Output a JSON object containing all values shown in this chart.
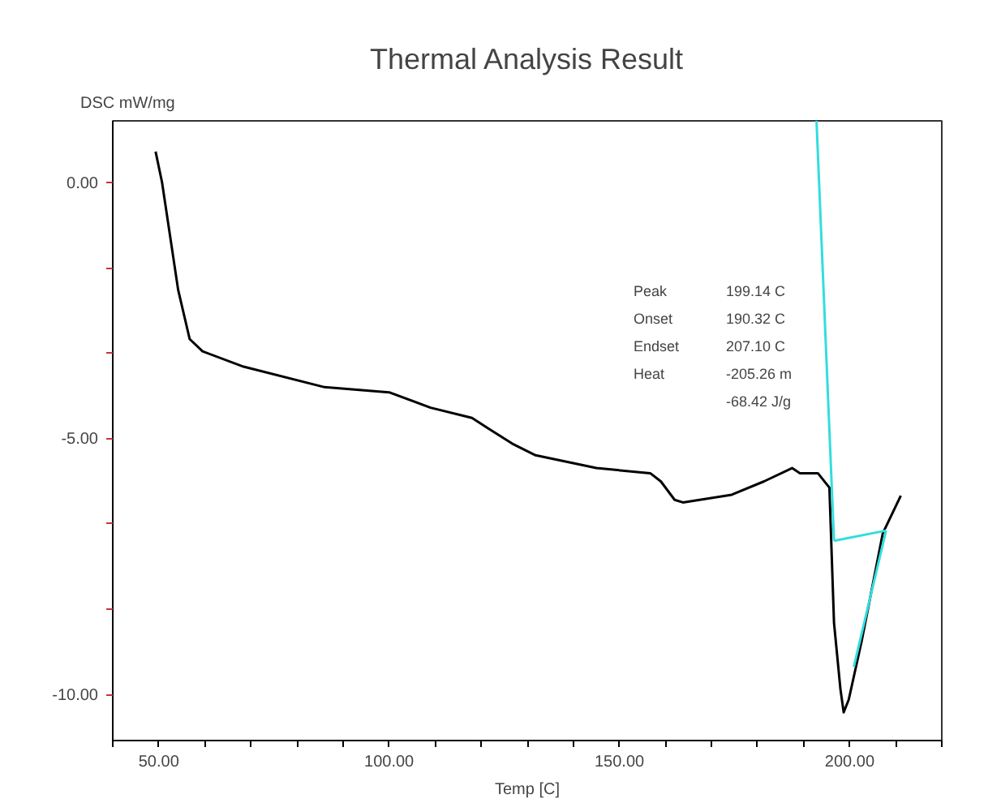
{
  "chart_data": {
    "type": "line",
    "title": "Thermal Analysis Result",
    "xlabel": "Temp [C]",
    "ylabel": "DSC mW/mg",
    "xlim": [
      40,
      220
    ],
    "ylim": [
      -10.9,
      1.2
    ],
    "xticks": [
      {
        "value": 40,
        "label": null
      },
      {
        "value": 50,
        "label": "50.00"
      },
      {
        "value": 60,
        "label": null
      },
      {
        "value": 70,
        "label": null
      },
      {
        "value": 80,
        "label": null
      },
      {
        "value": 90,
        "label": null
      },
      {
        "value": 100,
        "label": "100.00"
      },
      {
        "value": 110,
        "label": null
      },
      {
        "value": 120,
        "label": null
      },
      {
        "value": 130,
        "label": null
      },
      {
        "value": 140,
        "label": null
      },
      {
        "value": 150,
        "label": "150.00"
      },
      {
        "value": 160,
        "label": null
      },
      {
        "value": 170,
        "label": null
      },
      {
        "value": 180,
        "label": null
      },
      {
        "value": 190,
        "label": null
      },
      {
        "value": 200,
        "label": "200.00"
      },
      {
        "value": 210,
        "label": null
      },
      {
        "value": 220,
        "label": null
      }
    ],
    "yticks": [
      {
        "value": 0,
        "label": "0.00"
      },
      {
        "value": -1.67,
        "label": null
      },
      {
        "value": -3.33,
        "label": null
      },
      {
        "value": -5,
        "label": "-5.00"
      },
      {
        "value": -6.67,
        "label": null
      },
      {
        "value": -8.33,
        "label": null
      },
      {
        "value": -10,
        "label": "-10.00"
      }
    ],
    "grid": false,
    "line_style": "solid",
    "marker": "none",
    "series": [
      {
        "color": "#000000",
        "x": [
          49.3,
          50.7,
          54.2,
          56.7,
          59.5,
          68.4,
          86,
          100,
          109,
          118,
          121.4,
          126.7,
          131.8,
          145,
          156.7,
          159,
          162,
          163.8,
          174.4,
          181.4,
          187.5,
          189.2,
          193.1,
          195.6,
          196.6,
          198,
          198.7,
          199.8,
          202.6,
          207.2,
          211.1
        ],
        "values": [
          0.6,
          0.0,
          -2.1,
          -3.06,
          -3.3,
          -3.6,
          -4.0,
          -4.1,
          -4.4,
          -4.6,
          -4.8,
          -5.1,
          -5.33,
          -5.58,
          -5.68,
          -5.84,
          -6.2,
          -6.25,
          -6.1,
          -5.84,
          -5.58,
          -5.68,
          -5.68,
          -5.96,
          -8.6,
          -9.9,
          -10.35,
          -10.1,
          -8.96,
          -6.85,
          -6.12
        ]
      },
      {
        "color": "#33dddd",
        "x": [
          192.8,
          196.6
        ],
        "values": [
          1.2,
          -7.0
        ]
      },
      {
        "color": "#33dddd",
        "x": [
          196.6,
          207.9
        ],
        "values": [
          -7.0,
          -6.8
        ]
      },
      {
        "color": "#33dddd",
        "x": [
          207.9,
          200.9
        ],
        "values": [
          -6.8,
          -9.46
        ]
      }
    ],
    "annotations": [
      "Peak",
      "199.14 C",
      "Onset",
      "190.32 C",
      "Endset",
      "207.10 C",
      "Heat",
      "-205.26 m",
      "-68.42 J/g"
    ]
  }
}
